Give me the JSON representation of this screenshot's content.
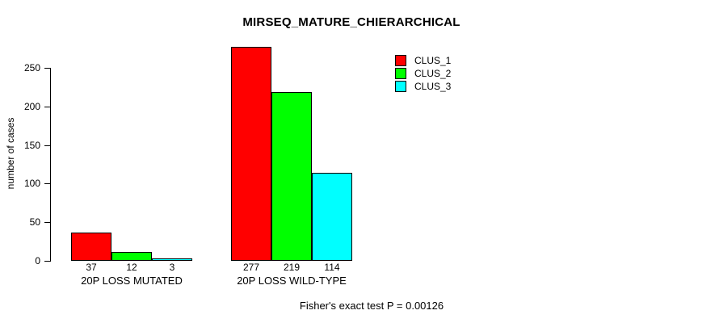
{
  "chart_data": {
    "type": "bar",
    "title": "MIRSEQ_MATURE_CHIERARCHICAL",
    "ylabel": "number of cases",
    "xlabel": "",
    "categories": [
      "20P LOSS MUTATED",
      "20P LOSS WILD-TYPE"
    ],
    "series": [
      {
        "name": "CLUS_1",
        "color": "#ff0000",
        "values": [
          37,
          277
        ]
      },
      {
        "name": "CLUS_2",
        "color": "#00ff00",
        "values": [
          12,
          219
        ]
      },
      {
        "name": "CLUS_3",
        "color": "#00ffff",
        "values": [
          3,
          114
        ]
      }
    ],
    "bar_value_labels": [
      [
        "37",
        "12",
        "3"
      ],
      [
        "277",
        "219",
        "114"
      ]
    ],
    "yticks": [
      0,
      50,
      100,
      150,
      200,
      250
    ],
    "ylim": [
      0,
      277
    ],
    "grid": false,
    "legend_position": "top-right",
    "annotation": "Fisher's exact test P = 0.00126",
    "colors": {
      "background": "#ffffff",
      "axis": "#000000",
      "text": "#000000"
    }
  }
}
